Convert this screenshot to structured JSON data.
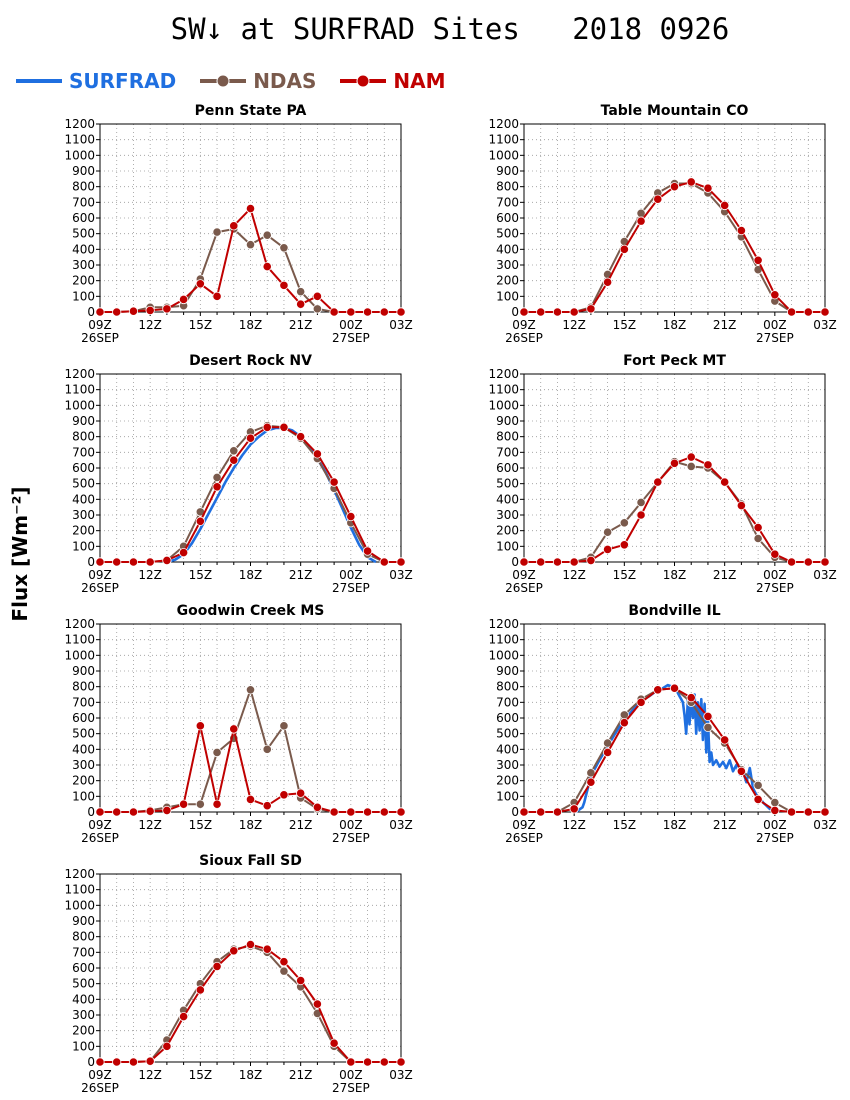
{
  "figure": {
    "title": "SW↓ at SURFRAD Sites   2018 0926",
    "ylabel": "Flux [Wm⁻²]",
    "legend": [
      {
        "name": "SURFRAD",
        "color": "#1f6fe0",
        "marker": false
      },
      {
        "name": "NDAS",
        "color": "#7a5a4c",
        "marker": true
      },
      {
        "name": "NAM",
        "color": "#c00000",
        "marker": true
      }
    ]
  },
  "chart_data": [
    {
      "type": "line",
      "title": "Penn State PA",
      "x": [
        9,
        10,
        11,
        12,
        13,
        14,
        15,
        16,
        17,
        18,
        19,
        20,
        21,
        22,
        23,
        24,
        25,
        26,
        27
      ],
      "x_ticks": [
        {
          "v": 9,
          "label": "09Z",
          "sub": "26SEP"
        },
        {
          "v": 12,
          "label": "12Z",
          "sub": ""
        },
        {
          "v": 15,
          "label": "15Z",
          "sub": ""
        },
        {
          "v": 18,
          "label": "18Z",
          "sub": ""
        },
        {
          "v": 21,
          "label": "21Z",
          "sub": ""
        },
        {
          "v": 24,
          "label": "00Z",
          "sub": "27SEP"
        },
        {
          "v": 27,
          "label": "03Z",
          "sub": ""
        }
      ],
      "xlim": [
        9,
        27
      ],
      "ylim": [
        0,
        1200
      ],
      "y_ticks": [
        0,
        100,
        200,
        300,
        400,
        500,
        600,
        700,
        800,
        900,
        1000,
        1100,
        1200
      ],
      "grid": true,
      "series": [
        {
          "name": "NDAS",
          "values": [
            0,
            0,
            5,
            30,
            30,
            40,
            210,
            510,
            530,
            430,
            490,
            410,
            130,
            20,
            0,
            0,
            0,
            0,
            0
          ]
        },
        {
          "name": "NAM",
          "values": [
            0,
            0,
            5,
            10,
            20,
            80,
            180,
            100,
            550,
            660,
            290,
            170,
            50,
            100,
            0,
            0,
            0,
            0,
            0
          ]
        }
      ]
    },
    {
      "type": "line",
      "title": "Table Mountain CO",
      "x": [
        9,
        10,
        11,
        12,
        13,
        14,
        15,
        16,
        17,
        18,
        19,
        20,
        21,
        22,
        23,
        24,
        25,
        26,
        27
      ],
      "x_ticks": [
        {
          "v": 9,
          "label": "09Z",
          "sub": "26SEP"
        },
        {
          "v": 12,
          "label": "12Z",
          "sub": ""
        },
        {
          "v": 15,
          "label": "15Z",
          "sub": ""
        },
        {
          "v": 18,
          "label": "18Z",
          "sub": ""
        },
        {
          "v": 21,
          "label": "21Z",
          "sub": ""
        },
        {
          "v": 24,
          "label": "00Z",
          "sub": "27SEP"
        },
        {
          "v": 27,
          "label": "03Z",
          "sub": ""
        }
      ],
      "xlim": [
        9,
        27
      ],
      "ylim": [
        0,
        1200
      ],
      "y_ticks": [
        0,
        100,
        200,
        300,
        400,
        500,
        600,
        700,
        800,
        900,
        1000,
        1100,
        1200
      ],
      "grid": true,
      "series": [
        {
          "name": "NDAS",
          "values": [
            0,
            0,
            0,
            0,
            30,
            240,
            450,
            630,
            760,
            820,
            820,
            760,
            640,
            480,
            270,
            70,
            0,
            0,
            0
          ]
        },
        {
          "name": "NAM",
          "values": [
            0,
            0,
            0,
            0,
            20,
            190,
            400,
            580,
            720,
            800,
            830,
            790,
            680,
            520,
            330,
            110,
            0,
            0,
            0
          ]
        }
      ]
    },
    {
      "type": "line",
      "title": "Desert Rock NV",
      "x": [
        9,
        10,
        11,
        12,
        13,
        14,
        15,
        16,
        17,
        18,
        19,
        20,
        21,
        22,
        23,
        24,
        25,
        26,
        27
      ],
      "x_ticks": [
        {
          "v": 9,
          "label": "09Z",
          "sub": "26SEP"
        },
        {
          "v": 12,
          "label": "12Z",
          "sub": ""
        },
        {
          "v": 15,
          "label": "15Z",
          "sub": ""
        },
        {
          "v": 18,
          "label": "18Z",
          "sub": ""
        },
        {
          "v": 21,
          "label": "21Z",
          "sub": ""
        },
        {
          "v": 24,
          "label": "00Z",
          "sub": "27SEP"
        },
        {
          "v": 27,
          "label": "03Z",
          "sub": ""
        }
      ],
      "xlim": [
        9,
        27
      ],
      "ylim": [
        0,
        1200
      ],
      "y_ticks": [
        0,
        100,
        200,
        300,
        400,
        500,
        600,
        700,
        800,
        900,
        1000,
        1100,
        1200
      ],
      "grid": true,
      "series": [
        {
          "name": "SURFRAD",
          "x": [
            13,
            13.5,
            14,
            14.5,
            15,
            15.5,
            16,
            16.5,
            17,
            17.5,
            18,
            18.5,
            19,
            19.5,
            20,
            20.5,
            21,
            21.5,
            22,
            22.5,
            23,
            23.5,
            24,
            24.5,
            25,
            25.5
          ],
          "values": [
            0,
            15,
            50,
            120,
            210,
            310,
            410,
            510,
            600,
            680,
            750,
            800,
            840,
            855,
            855,
            840,
            800,
            740,
            660,
            570,
            460,
            340,
            220,
            110,
            30,
            0
          ]
        },
        {
          "name": "NDAS",
          "values": [
            0,
            0,
            0,
            0,
            10,
            100,
            320,
            540,
            710,
            830,
            870,
            860,
            790,
            660,
            470,
            250,
            50,
            0,
            0
          ]
        },
        {
          "name": "NAM",
          "values": [
            0,
            0,
            0,
            0,
            10,
            60,
            260,
            480,
            650,
            790,
            860,
            860,
            800,
            690,
            510,
            290,
            70,
            0,
            0
          ]
        }
      ]
    },
    {
      "type": "line",
      "title": "Fort Peck MT",
      "x": [
        9,
        10,
        11,
        12,
        13,
        14,
        15,
        16,
        17,
        18,
        19,
        20,
        21,
        22,
        23,
        24,
        25,
        26,
        27
      ],
      "x_ticks": [
        {
          "v": 9,
          "label": "09Z",
          "sub": "26SEP"
        },
        {
          "v": 12,
          "label": "12Z",
          "sub": ""
        },
        {
          "v": 15,
          "label": "15Z",
          "sub": ""
        },
        {
          "v": 18,
          "label": "18Z",
          "sub": ""
        },
        {
          "v": 21,
          "label": "21Z",
          "sub": ""
        },
        {
          "v": 24,
          "label": "00Z",
          "sub": "27SEP"
        },
        {
          "v": 27,
          "label": "03Z",
          "sub": ""
        }
      ],
      "xlim": [
        9,
        27
      ],
      "ylim": [
        0,
        1200
      ],
      "y_ticks": [
        0,
        100,
        200,
        300,
        400,
        500,
        600,
        700,
        800,
        900,
        1000,
        1100,
        1200
      ],
      "grid": true,
      "series": [
        {
          "name": "NDAS",
          "values": [
            0,
            0,
            0,
            0,
            30,
            190,
            250,
            380,
            510,
            640,
            610,
            600,
            510,
            370,
            150,
            30,
            0,
            0,
            0
          ]
        },
        {
          "name": "NAM",
          "values": [
            0,
            0,
            0,
            0,
            10,
            80,
            110,
            300,
            510,
            630,
            670,
            620,
            510,
            360,
            220,
            50,
            0,
            0,
            0
          ]
        }
      ]
    },
    {
      "type": "line",
      "title": "Goodwin Creek MS",
      "x": [
        9,
        10,
        11,
        12,
        13,
        14,
        15,
        16,
        17,
        18,
        19,
        20,
        21,
        22,
        23,
        24,
        25,
        26,
        27
      ],
      "x_ticks": [
        {
          "v": 9,
          "label": "09Z",
          "sub": "26SEP"
        },
        {
          "v": 12,
          "label": "12Z",
          "sub": ""
        },
        {
          "v": 15,
          "label": "15Z",
          "sub": ""
        },
        {
          "v": 18,
          "label": "18Z",
          "sub": ""
        },
        {
          "v": 21,
          "label": "21Z",
          "sub": ""
        },
        {
          "v": 24,
          "label": "00Z",
          "sub": "27SEP"
        },
        {
          "v": 27,
          "label": "03Z",
          "sub": ""
        }
      ],
      "xlim": [
        9,
        27
      ],
      "ylim": [
        0,
        1200
      ],
      "y_ticks": [
        0,
        100,
        200,
        300,
        400,
        500,
        600,
        700,
        800,
        900,
        1000,
        1100,
        1200
      ],
      "grid": true,
      "series": [
        {
          "name": "NDAS",
          "values": [
            0,
            0,
            0,
            10,
            30,
            50,
            50,
            380,
            470,
            780,
            400,
            550,
            90,
            20,
            0,
            0,
            0,
            0,
            0
          ]
        },
        {
          "name": "NAM",
          "values": [
            0,
            0,
            0,
            5,
            10,
            50,
            550,
            50,
            530,
            80,
            40,
            110,
            120,
            30,
            0,
            0,
            0,
            0,
            0
          ]
        }
      ]
    },
    {
      "type": "line",
      "title": "Bondville IL",
      "x": [
        9,
        10,
        11,
        12,
        13,
        14,
        15,
        16,
        17,
        18,
        19,
        20,
        21,
        22,
        23,
        24,
        25,
        26,
        27
      ],
      "x_ticks": [
        {
          "v": 9,
          "label": "09Z",
          "sub": "26SEP"
        },
        {
          "v": 12,
          "label": "12Z",
          "sub": ""
        },
        {
          "v": 15,
          "label": "15Z",
          "sub": ""
        },
        {
          "v": 18,
          "label": "18Z",
          "sub": ""
        },
        {
          "v": 21,
          "label": "21Z",
          "sub": ""
        },
        {
          "v": 24,
          "label": "00Z",
          "sub": "27SEP"
        },
        {
          "v": 27,
          "label": "03Z",
          "sub": ""
        }
      ],
      "xlim": [
        9,
        27
      ],
      "ylim": [
        0,
        1200
      ],
      "y_ticks": [
        0,
        100,
        200,
        300,
        400,
        500,
        600,
        700,
        800,
        900,
        1000,
        1100,
        1200
      ],
      "grid": true,
      "series": [
        {
          "name": "SURFRAD",
          "x": [
            12.1,
            12.5,
            12.6,
            13,
            13.5,
            14,
            14.5,
            15,
            15.5,
            16,
            16.5,
            17,
            17.3,
            17.6,
            17.9,
            18.1,
            18.3,
            18.5,
            18.6,
            18.7,
            18.8,
            18.9,
            19,
            19.1,
            19.2,
            19.3,
            19.4,
            19.5,
            19.6,
            19.7,
            19.8,
            19.9,
            20,
            20.1,
            20.2,
            20.3,
            20.5,
            20.7,
            20.9,
            21.1,
            21.3,
            21.5,
            21.7,
            21.9,
            22.1,
            22.3,
            22.5,
            22.7,
            22.9,
            23.1,
            23.3,
            23.5,
            23.7,
            23.9,
            24.1
          ],
          "values": [
            0,
            30,
            60,
            230,
            330,
            420,
            510,
            590,
            650,
            710,
            740,
            780,
            790,
            810,
            800,
            780,
            740,
            700,
            620,
            500,
            720,
            560,
            740,
            600,
            750,
            500,
            700,
            520,
            720,
            460,
            690,
            380,
            600,
            320,
            380,
            300,
            330,
            290,
            320,
            280,
            330,
            260,
            300,
            240,
            260,
            190,
            280,
            150,
            110,
            90,
            60,
            40,
            20,
            10,
            0
          ]
        },
        {
          "name": "NDAS",
          "values": [
            0,
            0,
            0,
            60,
            250,
            440,
            620,
            720,
            780,
            790,
            700,
            540,
            440,
            270,
            170,
            60,
            0,
            0,
            0
          ]
        },
        {
          "name": "NAM",
          "values": [
            0,
            0,
            0,
            20,
            190,
            380,
            570,
            700,
            780,
            790,
            730,
            610,
            460,
            260,
            80,
            10,
            0,
            0,
            0
          ]
        }
      ]
    },
    {
      "type": "line",
      "title": "Sioux Fall SD",
      "x": [
        9,
        10,
        11,
        12,
        13,
        14,
        15,
        16,
        17,
        18,
        19,
        20,
        21,
        22,
        23,
        24,
        25,
        26,
        27
      ],
      "x_ticks": [
        {
          "v": 9,
          "label": "09Z",
          "sub": "26SEP"
        },
        {
          "v": 12,
          "label": "12Z",
          "sub": ""
        },
        {
          "v": 15,
          "label": "15Z",
          "sub": ""
        },
        {
          "v": 18,
          "label": "18Z",
          "sub": ""
        },
        {
          "v": 21,
          "label": "21Z",
          "sub": ""
        },
        {
          "v": 24,
          "label": "00Z",
          "sub": "27SEP"
        },
        {
          "v": 27,
          "label": "03Z",
          "sub": ""
        }
      ],
      "xlim": [
        9,
        27
      ],
      "ylim": [
        0,
        1200
      ],
      "y_ticks": [
        0,
        100,
        200,
        300,
        400,
        500,
        600,
        700,
        800,
        900,
        1000,
        1100,
        1200
      ],
      "grid": true,
      "series": [
        {
          "name": "NDAS",
          "values": [
            0,
            0,
            0,
            5,
            140,
            330,
            500,
            640,
            720,
            740,
            700,
            580,
            480,
            310,
            100,
            0,
            0,
            0,
            0
          ]
        },
        {
          "name": "NAM",
          "values": [
            0,
            0,
            0,
            5,
            100,
            290,
            460,
            610,
            710,
            750,
            720,
            640,
            520,
            370,
            120,
            0,
            0,
            0,
            0
          ]
        }
      ]
    }
  ]
}
